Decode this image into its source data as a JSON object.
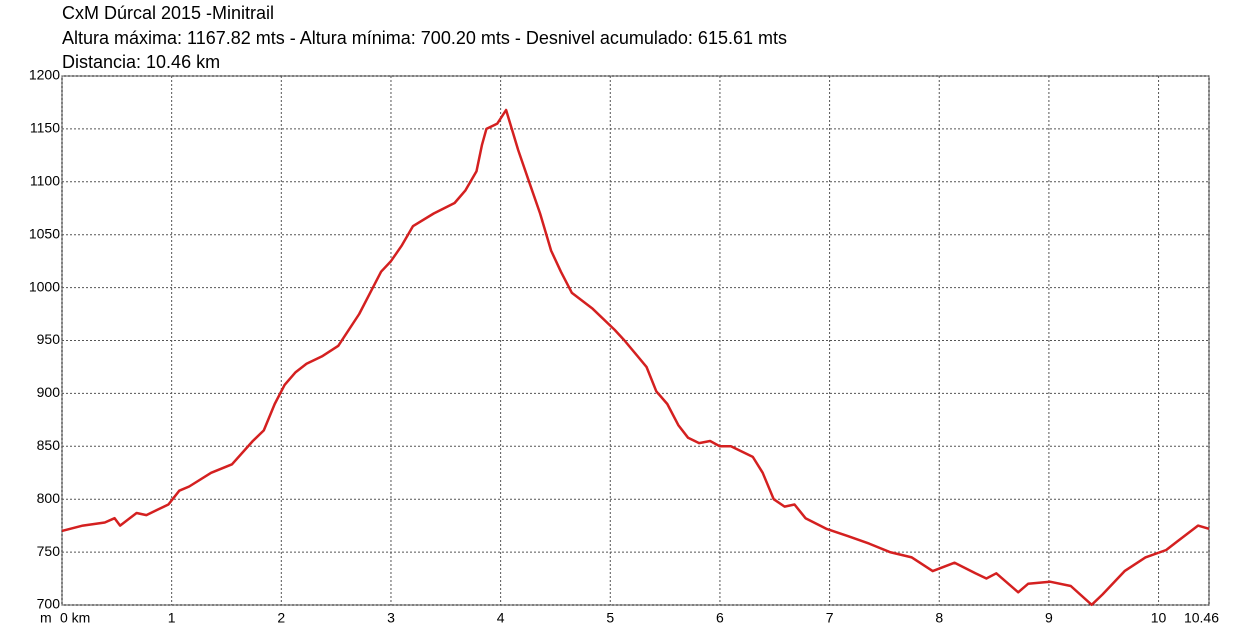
{
  "chart_data": {
    "type": "line",
    "title": "CxM Dúrcal 2015 -Minitrail",
    "subtitle": "Altura máxima: 1167.82 mts - Altura mínima: 700.20 mts - Desnivel acumulado: 615.61 mts",
    "annotation": "Distancia: 10.46 km",
    "ylabel": "m",
    "x": [
      0,
      0.19,
      0.39,
      0.48,
      0.53,
      0.68,
      0.77,
      0.87,
      0.97,
      1.07,
      1.16,
      1.36,
      1.55,
      1.74,
      1.84,
      1.94,
      2.03,
      2.13,
      2.23,
      2.37,
      2.52,
      2.71,
      2.81,
      2.91,
      3.0,
      3.1,
      3.2,
      3.39,
      3.58,
      3.68,
      3.78,
      3.83,
      3.87,
      3.97,
      4.05,
      4.16,
      4.26,
      4.36,
      4.46,
      4.55,
      4.65,
      4.84,
      5.04,
      5.13,
      5.33,
      5.42,
      5.52,
      5.62,
      5.71,
      5.81,
      5.91,
      6.0,
      6.1,
      6.3,
      6.39,
      6.49,
      6.59,
      6.68,
      6.78,
      6.97,
      7.17,
      7.36,
      7.55,
      7.75,
      7.94,
      8.14,
      8.33,
      8.43,
      8.52,
      8.72,
      8.81,
      9.01,
      9.2,
      9.39,
      9.49,
      9.69,
      9.88,
      10.07,
      10.17,
      10.36,
      10.46
    ],
    "series": [
      {
        "name": "Altura",
        "color": "#d42020",
        "values": [
          770,
          775,
          778,
          782,
          775,
          787,
          785,
          790,
          795,
          808,
          812,
          825,
          833,
          855,
          865,
          890,
          908,
          920,
          928,
          935,
          945,
          975,
          995,
          1015,
          1025,
          1040,
          1058,
          1070,
          1080,
          1092,
          1110,
          1135,
          1150,
          1155,
          1167.82,
          1130,
          1100,
          1070,
          1035,
          1015,
          995,
          980,
          960,
          950,
          925,
          902,
          890,
          870,
          858,
          853,
          855,
          850,
          850,
          840,
          825,
          800,
          793,
          795,
          782,
          772,
          765,
          758,
          750,
          745,
          732,
          740,
          730,
          725,
          730,
          712,
          720,
          722,
          718,
          700.2,
          710,
          732,
          745,
          752,
          760,
          775,
          772
        ]
      }
    ],
    "xlim": [
      0,
      10.46
    ],
    "xticks": [
      {
        "value": 0,
        "label": "0 km"
      },
      1,
      2,
      3,
      4,
      5,
      6,
      7,
      8,
      9,
      10,
      10.46
    ],
    "ylim": [
      700,
      1200
    ],
    "yticks": [
      700,
      750,
      800,
      850,
      900,
      950,
      1000,
      1050,
      1100,
      1150,
      1200
    ],
    "grid": true
  }
}
